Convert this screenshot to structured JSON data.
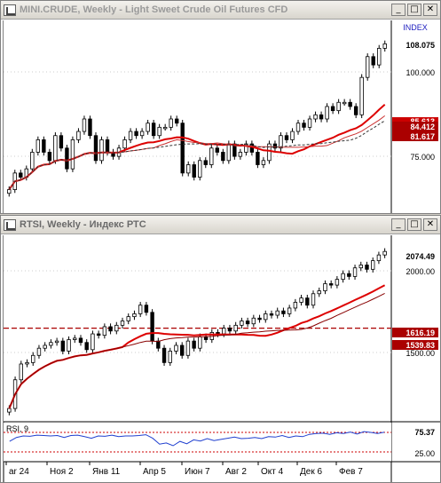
{
  "window_top": {
    "title": "MINI.CRUDE, Weekly - Light Sweet Crude Oil Futures CFD",
    "index_label": "INDEX",
    "last_price": "108.075",
    "price_upper": "84.412",
    "price_lower": "81.617",
    "price_hidden": "85.613",
    "axis_ticks": [
      "100.000",
      "75.000"
    ],
    "icon_minimize": "_",
    "icon_maximize": "□",
    "icon_close": "✕"
  },
  "window_bottom": {
    "title": "RTSI, Weekly - Индекс РТС",
    "last_price": "2074.49",
    "price_upper": "1616.19",
    "price_lower": "1539.83",
    "axis_ticks": [
      "2000.00",
      "1500.00"
    ],
    "rsi_label": "RSI, 9",
    "rsi_value": "75.37",
    "rsi_level": "25.00",
    "x_labels": [
      "ar 24",
      "Ноя 2",
      "Янв 11",
      "Апр 5",
      "Июн 7",
      "Авг 2",
      "Окт 4",
      "Дек 6",
      "Фев 7"
    ],
    "icon_minimize": "_",
    "icon_maximize": "□",
    "icon_close": "✕"
  },
  "chart_data": [
    {
      "type": "candlestick",
      "title": "MINI.CRUDE, Weekly - Light Sweet Crude Oil Futures CFD",
      "ylim": [
        68,
        112
      ],
      "y_ticks": [
        75,
        100
      ],
      "close": [
        73,
        77,
        76,
        78,
        82,
        85,
        82,
        80,
        86,
        83,
        78,
        85,
        87,
        90,
        86,
        80,
        85,
        82,
        81,
        83,
        85,
        87,
        86,
        87,
        89,
        86,
        88,
        88,
        90,
        89,
        77,
        79,
        76,
        80,
        79,
        83,
        82,
        80,
        84,
        81,
        82,
        84,
        82,
        79,
        80,
        84,
        83,
        86,
        85,
        87,
        89,
        88,
        90,
        91,
        90,
        93,
        92,
        94,
        94,
        93,
        91,
        100,
        105,
        103,
        107,
        108.075
      ],
      "moving_averages": [
        {
          "color": "#dd0000",
          "last": 85.613
        },
        {
          "color": "#cc3333",
          "last": 84.412
        },
        {
          "color": "#333333",
          "last": 81.617
        }
      ]
    },
    {
      "type": "candlestick",
      "title": "RTSI, Weekly - Индекс РТС",
      "ylim": [
        900,
        2150
      ],
      "y_ticks": [
        1500,
        2000
      ],
      "close": [
        980,
        1180,
        1290,
        1300,
        1350,
        1400,
        1420,
        1440,
        1450,
        1380,
        1460,
        1470,
        1440,
        1390,
        1500,
        1490,
        1550,
        1520,
        1560,
        1590,
        1620,
        1640,
        1700,
        1650,
        1450,
        1400,
        1300,
        1380,
        1420,
        1350,
        1450,
        1400,
        1480,
        1460,
        1510,
        1500,
        1540,
        1520,
        1560,
        1590,
        1570,
        1610,
        1600,
        1640,
        1630,
        1660,
        1640,
        1680,
        1720,
        1750,
        1700,
        1780,
        1800,
        1850,
        1840,
        1880,
        1920,
        1900,
        1960,
        1980,
        1950,
        2010,
        2050,
        2074.49
      ],
      "moving_averages": [
        {
          "color": "#dd0000",
          "last": 1616.19
        },
        {
          "color": "#880000",
          "last": 1539.83
        }
      ],
      "reference_line": 1539.83
    },
    {
      "type": "line",
      "title": "RSI, 9",
      "ylim": [
        0,
        100
      ],
      "levels": [
        75,
        25
      ],
      "values": [
        52,
        62,
        66,
        65,
        68,
        67,
        66,
        67,
        62,
        67,
        68,
        64,
        60,
        66,
        65,
        68,
        64,
        66,
        66,
        67,
        69,
        60,
        45,
        48,
        41,
        52,
        46,
        56,
        53,
        59,
        54,
        57,
        60,
        63,
        59,
        60,
        62,
        59,
        64,
        63,
        67,
        62,
        66,
        64,
        70,
        72,
        73,
        70,
        74,
        72,
        76,
        71,
        77,
        75,
        72,
        75.37
      ]
    }
  ]
}
